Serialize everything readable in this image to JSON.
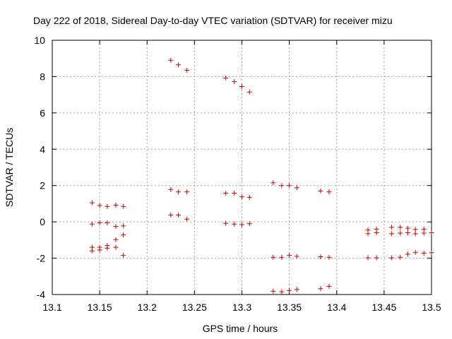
{
  "chart_data": {
    "type": "scatter",
    "title": "Day 222 of 2018, Sidereal Day-to-day VTEC variation (SDTVAR) for receiver mizu",
    "xlabel": "GPS time / hours",
    "ylabel": "SDTVAR / TECUs",
    "xlim": [
      13.1,
      13.5
    ],
    "ylim": [
      -4,
      10
    ],
    "xticks": [
      "13.1",
      "13.15",
      "13.2",
      "13.25",
      "13.3",
      "13.35",
      "13.4",
      "13.45",
      "13.5"
    ],
    "yticks": [
      "-4",
      "-2",
      "0",
      "2",
      "4",
      "6",
      "8",
      "10"
    ],
    "grid": true,
    "marker": "plus",
    "marker_color": "#cc0000",
    "series": [
      {
        "name": "SDTVAR",
        "points": [
          [
            13.142,
            1.05
          ],
          [
            13.15,
            0.9
          ],
          [
            13.158,
            0.85
          ],
          [
            13.167,
            0.92
          ],
          [
            13.175,
            0.85
          ],
          [
            13.142,
            -0.12
          ],
          [
            13.15,
            -0.05
          ],
          [
            13.158,
            -0.05
          ],
          [
            13.167,
            -0.25
          ],
          [
            13.175,
            -0.22
          ],
          [
            13.167,
            -0.98
          ],
          [
            13.175,
            -0.72
          ],
          [
            13.142,
            -1.4
          ],
          [
            13.15,
            -1.4
          ],
          [
            13.158,
            -1.3
          ],
          [
            13.167,
            -1.4
          ],
          [
            13.142,
            -1.6
          ],
          [
            13.15,
            -1.55
          ],
          [
            13.158,
            -1.45
          ],
          [
            13.175,
            -1.85
          ],
          [
            13.225,
            8.9
          ],
          [
            13.233,
            8.65
          ],
          [
            13.242,
            8.35
          ],
          [
            13.225,
            1.78
          ],
          [
            13.233,
            1.65
          ],
          [
            13.242,
            1.65
          ],
          [
            13.225,
            0.38
          ],
          [
            13.233,
            0.38
          ],
          [
            13.242,
            0.15
          ],
          [
            13.283,
            7.92
          ],
          [
            13.292,
            7.72
          ],
          [
            13.3,
            7.45
          ],
          [
            13.308,
            7.15
          ],
          [
            13.283,
            1.58
          ],
          [
            13.292,
            1.58
          ],
          [
            13.3,
            1.38
          ],
          [
            13.308,
            1.35
          ],
          [
            13.283,
            -0.08
          ],
          [
            13.292,
            -0.12
          ],
          [
            13.3,
            -0.15
          ],
          [
            13.308,
            -0.1
          ],
          [
            13.333,
            2.15
          ],
          [
            13.342,
            2.0
          ],
          [
            13.35,
            2.0
          ],
          [
            13.358,
            1.88
          ],
          [
            13.333,
            -1.95
          ],
          [
            13.342,
            -1.95
          ],
          [
            13.35,
            -1.85
          ],
          [
            13.358,
            -1.9
          ],
          [
            13.333,
            -3.82
          ],
          [
            13.342,
            -3.85
          ],
          [
            13.35,
            -3.78
          ],
          [
            13.358,
            -3.72
          ],
          [
            13.383,
            1.7
          ],
          [
            13.392,
            1.65
          ],
          [
            13.383,
            -1.92
          ],
          [
            13.392,
            -1.95
          ],
          [
            13.383,
            -3.68
          ],
          [
            13.392,
            -3.55
          ],
          [
            13.433,
            -0.45
          ],
          [
            13.442,
            -0.4
          ],
          [
            13.433,
            -0.65
          ],
          [
            13.442,
            -0.6
          ],
          [
            13.433,
            -1.98
          ],
          [
            13.442,
            -1.98
          ],
          [
            13.458,
            -0.3
          ],
          [
            13.467,
            -0.3
          ],
          [
            13.475,
            -0.35
          ],
          [
            13.483,
            -0.42
          ],
          [
            13.492,
            -0.4
          ],
          [
            13.458,
            -0.65
          ],
          [
            13.467,
            -0.62
          ],
          [
            13.475,
            -0.6
          ],
          [
            13.483,
            -0.65
          ],
          [
            13.492,
            -0.62
          ],
          [
            13.5,
            -0.6
          ],
          [
            13.458,
            -1.98
          ],
          [
            13.467,
            -1.95
          ],
          [
            13.475,
            -1.78
          ],
          [
            13.483,
            -1.68
          ],
          [
            13.492,
            -1.72
          ],
          [
            13.5,
            -1.7
          ]
        ]
      }
    ]
  }
}
